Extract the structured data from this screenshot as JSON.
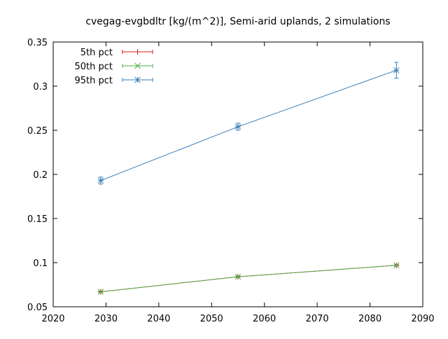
{
  "chart_data": {
    "type": "line",
    "title": "cvegag-evgbdltr [kg/(m^2)], Semi-arid uplands, 2 simulations",
    "xlabel": "",
    "ylabel": "",
    "xlim": [
      2020,
      2090
    ],
    "ylim": [
      0.05,
      0.35
    ],
    "x_ticks": [
      "2020",
      "2030",
      "2040",
      "2050",
      "2060",
      "2070",
      "2080",
      "2090"
    ],
    "y_ticks": [
      "0.05",
      "0.1",
      "0.15",
      "0.2",
      "0.25",
      "0.3",
      "0.35"
    ],
    "x": [
      2029,
      2055,
      2085
    ],
    "grid": false,
    "legend_position": "top-left",
    "series": [
      {
        "name": "5th pct",
        "color": "#e41a1c",
        "marker": "plus",
        "values": [
          0.067,
          0.084,
          0.097
        ],
        "err_low": [
          0.066,
          0.083,
          0.096
        ],
        "err_high": [
          0.068,
          0.085,
          0.098
        ]
      },
      {
        "name": "50th pct",
        "color": "#4daf4a",
        "marker": "cross",
        "values": [
          0.067,
          0.084,
          0.097
        ],
        "err_low": [
          0.066,
          0.083,
          0.096
        ],
        "err_high": [
          0.068,
          0.085,
          0.098
        ]
      },
      {
        "name": "95th pct",
        "color": "#377eb8",
        "marker": "star",
        "values": [
          0.193,
          0.254,
          0.318
        ],
        "err_low": [
          0.189,
          0.25,
          0.309
        ],
        "err_high": [
          0.197,
          0.258,
          0.327
        ]
      }
    ]
  }
}
